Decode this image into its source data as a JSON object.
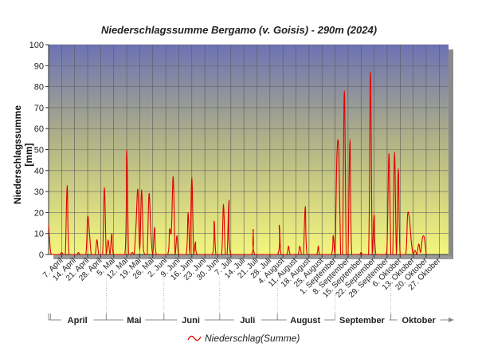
{
  "chart_data": {
    "type": "line",
    "title": "Niederschlagssumme Bergamo (v. Goisis) - 290m (2024)",
    "xlabel": "",
    "ylabel": "Niederschlagssumme [mm]",
    "ylim": [
      0,
      100
    ],
    "yticks": [
      0,
      10,
      20,
      30,
      40,
      50,
      60,
      70,
      80,
      90,
      100
    ],
    "x_date_range": [
      "2024-03-31",
      "2024-11-01"
    ],
    "xtick_labels": [
      "7. April",
      "14. April",
      "21. April",
      "28. April",
      "5. Mai",
      "12. Mai",
      "19. Mai",
      "26. Mai",
      "2. Juni",
      "9. Juni",
      "16. Juni",
      "23. Juni",
      "30. Juni",
      "7. Juli",
      "14. Juli",
      "21. Juli",
      "28. Juli",
      "4. August",
      "11. August",
      "18. August",
      "25. August",
      "1. September",
      "8. September",
      "15. September",
      "22. September",
      "29. September",
      "6. Oktober",
      "13. Oktober",
      "20. Oktober",
      "27. Oktober"
    ],
    "xtick_dates": [
      "2024-04-07",
      "2024-04-14",
      "2024-04-21",
      "2024-04-28",
      "2024-05-05",
      "2024-05-12",
      "2024-05-19",
      "2024-05-26",
      "2024-06-02",
      "2024-06-09",
      "2024-06-16",
      "2024-06-23",
      "2024-06-30",
      "2024-07-07",
      "2024-07-14",
      "2024-07-21",
      "2024-07-28",
      "2024-08-04",
      "2024-08-11",
      "2024-08-18",
      "2024-08-25",
      "2024-09-01",
      "2024-09-08",
      "2024-09-15",
      "2024-09-22",
      "2024-09-29",
      "2024-10-06",
      "2024-10-13",
      "2024-10-20",
      "2024-10-27"
    ],
    "months": [
      {
        "label": "April",
        "start": "2024-04-01",
        "end": "2024-04-30"
      },
      {
        "label": "Mai",
        "start": "2024-05-01",
        "end": "2024-05-31"
      },
      {
        "label": "Juni",
        "start": "2024-06-01",
        "end": "2024-06-30"
      },
      {
        "label": "Juli",
        "start": "2024-07-01",
        "end": "2024-07-31"
      },
      {
        "label": "August",
        "start": "2024-08-01",
        "end": "2024-08-31"
      },
      {
        "label": "September",
        "start": "2024-09-01",
        "end": "2024-09-30"
      },
      {
        "label": "Oktober",
        "start": "2024-10-01",
        "end": "2024-10-31"
      }
    ],
    "grid": true,
    "legend_position": "bottom",
    "series": [
      {
        "name": "Niederschlag(Summe)",
        "color": "#e00000",
        "points": [
          [
            "2024-03-31",
            14
          ],
          [
            "2024-04-01",
            2
          ],
          [
            "2024-04-02",
            0
          ],
          [
            "2024-04-06",
            0
          ],
          [
            "2024-04-07",
            1
          ],
          [
            "2024-04-08",
            0
          ],
          [
            "2024-04-09",
            0
          ],
          [
            "2024-04-10",
            33
          ],
          [
            "2024-04-11",
            0
          ],
          [
            "2024-04-15",
            0
          ],
          [
            "2024-04-16",
            1
          ],
          [
            "2024-04-17",
            0
          ],
          [
            "2024-04-20",
            0
          ],
          [
            "2024-04-21",
            18
          ],
          [
            "2024-04-22",
            10
          ],
          [
            "2024-04-23",
            0
          ],
          [
            "2024-04-25",
            0
          ],
          [
            "2024-04-26",
            7
          ],
          [
            "2024-04-27",
            0
          ],
          [
            "2024-04-29",
            0
          ],
          [
            "2024-04-30",
            32
          ],
          [
            "2024-05-01",
            0
          ],
          [
            "2024-05-02",
            7
          ],
          [
            "2024-05-03",
            0
          ],
          [
            "2024-05-04",
            10
          ],
          [
            "2024-05-05",
            0
          ],
          [
            "2024-05-11",
            0
          ],
          [
            "2024-05-12",
            50
          ],
          [
            "2024-05-13",
            0
          ],
          [
            "2024-05-14",
            0
          ],
          [
            "2024-05-15",
            1
          ],
          [
            "2024-05-16",
            0
          ],
          [
            "2024-05-17",
            14
          ],
          [
            "2024-05-18",
            31
          ],
          [
            "2024-05-19",
            2
          ],
          [
            "2024-05-20",
            31
          ],
          [
            "2024-05-21",
            2
          ],
          [
            "2024-05-22",
            0
          ],
          [
            "2024-05-23",
            0
          ],
          [
            "2024-05-24",
            29
          ],
          [
            "2024-05-25",
            10
          ],
          [
            "2024-05-26",
            0
          ],
          [
            "2024-05-27",
            13
          ],
          [
            "2024-05-28",
            0
          ],
          [
            "2024-06-03",
            0
          ],
          [
            "2024-06-04",
            12
          ],
          [
            "2024-06-05",
            11
          ],
          [
            "2024-06-06",
            37
          ],
          [
            "2024-06-07",
            0
          ],
          [
            "2024-06-08",
            9
          ],
          [
            "2024-06-09",
            0
          ],
          [
            "2024-06-13",
            0
          ],
          [
            "2024-06-14",
            20
          ],
          [
            "2024-06-15",
            0
          ],
          [
            "2024-06-16",
            37
          ],
          [
            "2024-06-17",
            0
          ],
          [
            "2024-06-18",
            6
          ],
          [
            "2024-06-19",
            0
          ],
          [
            "2024-06-27",
            0
          ],
          [
            "2024-06-28",
            16
          ],
          [
            "2024-06-29",
            0
          ],
          [
            "2024-07-02",
            0
          ],
          [
            "2024-07-03",
            24
          ],
          [
            "2024-07-04",
            0
          ],
          [
            "2024-07-05",
            0
          ],
          [
            "2024-07-06",
            26
          ],
          [
            "2024-07-07",
            0
          ],
          [
            "2024-07-18",
            0
          ],
          [
            "2024-07-19",
            12
          ],
          [
            "2024-07-20",
            0
          ],
          [
            "2024-08-01",
            0
          ],
          [
            "2024-08-02",
            14
          ],
          [
            "2024-08-03",
            0
          ],
          [
            "2024-08-06",
            0
          ],
          [
            "2024-08-07",
            4
          ],
          [
            "2024-08-08",
            0
          ],
          [
            "2024-08-12",
            0
          ],
          [
            "2024-08-13",
            4
          ],
          [
            "2024-08-14",
            0
          ],
          [
            "2024-08-15",
            0
          ],
          [
            "2024-08-16",
            23
          ],
          [
            "2024-08-17",
            0
          ],
          [
            "2024-08-22",
            0
          ],
          [
            "2024-08-23",
            4
          ],
          [
            "2024-08-24",
            0
          ],
          [
            "2024-08-30",
            0
          ],
          [
            "2024-08-31",
            9
          ],
          [
            "2024-09-01",
            0
          ],
          [
            "2024-09-02",
            47
          ],
          [
            "2024-09-03",
            50
          ],
          [
            "2024-09-04",
            0
          ],
          [
            "2024-09-05",
            0
          ],
          [
            "2024-09-06",
            78
          ],
          [
            "2024-09-07",
            0
          ],
          [
            "2024-09-08",
            0
          ],
          [
            "2024-09-09",
            55
          ],
          [
            "2024-09-10",
            0
          ],
          [
            "2024-09-14",
            0
          ],
          [
            "2024-09-15",
            1
          ],
          [
            "2024-09-16",
            0
          ],
          [
            "2024-09-19",
            0
          ],
          [
            "2024-09-20",
            87
          ],
          [
            "2024-09-21",
            0
          ],
          [
            "2024-09-22",
            19
          ],
          [
            "2024-09-23",
            0
          ],
          [
            "2024-09-28",
            0
          ],
          [
            "2024-09-29",
            5
          ],
          [
            "2024-09-30",
            48
          ],
          [
            "2024-10-01",
            0
          ],
          [
            "2024-10-02",
            0
          ],
          [
            "2024-10-03",
            49
          ],
          [
            "2024-10-04",
            0
          ],
          [
            "2024-10-05",
            41
          ],
          [
            "2024-10-06",
            0
          ],
          [
            "2024-10-09",
            0
          ],
          [
            "2024-10-10",
            19
          ],
          [
            "2024-10-11",
            17
          ],
          [
            "2024-10-12",
            6
          ],
          [
            "2024-10-13",
            0
          ],
          [
            "2024-10-14",
            2
          ],
          [
            "2024-10-15",
            0
          ],
          [
            "2024-10-16",
            5
          ],
          [
            "2024-10-17",
            1
          ],
          [
            "2024-10-18",
            8
          ],
          [
            "2024-10-19",
            8
          ],
          [
            "2024-10-20",
            0
          ]
        ]
      }
    ]
  }
}
